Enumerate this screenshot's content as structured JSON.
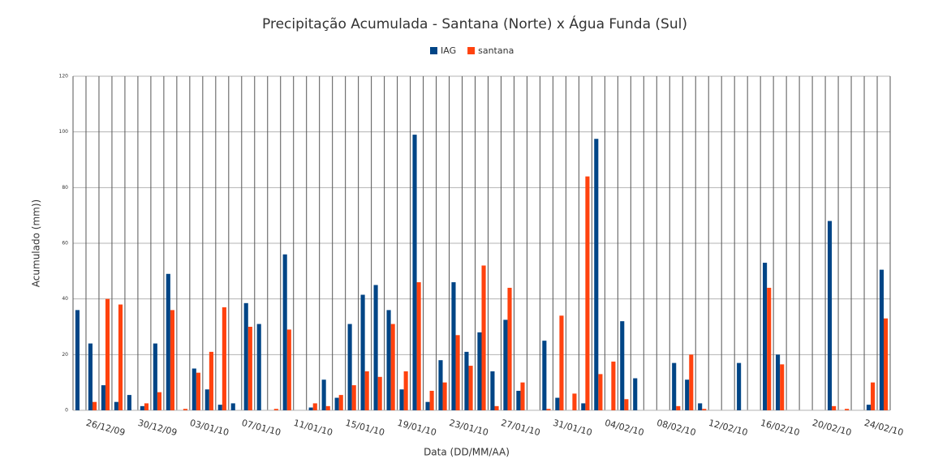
{
  "chart_data": {
    "type": "bar",
    "title": "Precipitação Acumulada - Santana (Norte) x Água Funda (Sul)",
    "x_label": "Data (DD/MM/AA)",
    "y_label": "Acumulado (mm))",
    "categories": [
      null,
      null,
      "26/12/09",
      null,
      null,
      null,
      "30/12/09",
      null,
      null,
      null,
      "03/01/10",
      null,
      null,
      null,
      "07/01/10",
      null,
      null,
      null,
      "11/01/10",
      null,
      null,
      null,
      "15/01/10",
      null,
      null,
      null,
      "19/01/10",
      null,
      null,
      null,
      "23/01/10",
      null,
      null,
      null,
      "27/01/10",
      null,
      null,
      null,
      "31/01/10",
      null,
      null,
      null,
      "04/02/10",
      null,
      null,
      null,
      "08/02/10",
      null,
      null,
      null,
      "12/02/10",
      null,
      null,
      null,
      "16/02/10",
      null,
      null,
      null,
      "20/02/10",
      null,
      null,
      null,
      "24/02/10"
    ],
    "series": [
      {
        "name": "IAG",
        "color": "#004586",
        "values": [
          36,
          24,
          9,
          3,
          5.5,
          1.5,
          24,
          49,
          0,
          15,
          7.5,
          2,
          2.5,
          38.5,
          31,
          0,
          56,
          0,
          1,
          11,
          4.5,
          31,
          41.5,
          45,
          36,
          7.5,
          99,
          3,
          18,
          46,
          21,
          28,
          14,
          32.5,
          7,
          0,
          25,
          4.5,
          0,
          2.5,
          97.5,
          0,
          32,
          11.5,
          0,
          0,
          17,
          11,
          2.5,
          0,
          0,
          17,
          0,
          53,
          20,
          0,
          0,
          0,
          68,
          0,
          0,
          2,
          50.5
        ]
      },
      {
        "name": "santana",
        "color": "#ff420e",
        "values": [
          0,
          3,
          40,
          38,
          0,
          2.5,
          6.5,
          36,
          0.5,
          13.5,
          21,
          37,
          0,
          30,
          0,
          0.5,
          29,
          0,
          2.5,
          1.5,
          5.5,
          9,
          14,
          12,
          31,
          14,
          46,
          7,
          10,
          27,
          16,
          52,
          1.5,
          44,
          10,
          0,
          0.5,
          34,
          6,
          84,
          13,
          17.5,
          4,
          0,
          0,
          0,
          1.5,
          20,
          0.5,
          0,
          0,
          0,
          0,
          44,
          16.5,
          0,
          0,
          0,
          1.5,
          0.5,
          0,
          10,
          33
        ]
      }
    ],
    "ylim": [
      0,
      120
    ],
    "yticks": [
      0,
      20,
      40,
      60,
      80,
      100,
      120
    ],
    "grid": true
  }
}
